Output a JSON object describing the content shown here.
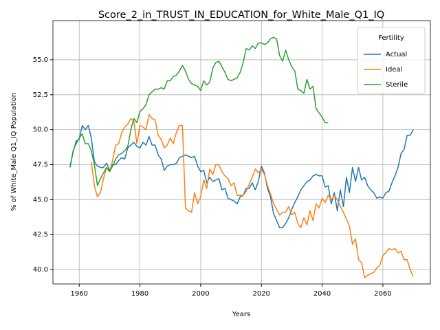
{
  "chart_data": {
    "type": "line",
    "title": "Score_2_in_TRUST_IN_EDUCATION_for_White_Male_Q1_IQ",
    "xlabel": "Years",
    "ylabel": "% of White_Male Q1_IQ Population",
    "legend_title": "Fertility",
    "legend": "upper right",
    "grid": true,
    "xlim": [
      1951.35,
      2075.65
    ],
    "ylim": [
      38.97,
      57.8
    ],
    "xticks": [
      1960,
      1980,
      2000,
      2020,
      2040,
      2060
    ],
    "yticks": [
      {
        "value": 40,
        "label": "40.0"
      },
      42.5,
      {
        "value": 45,
        "label": "45.0"
      },
      47.5,
      {
        "value": 50,
        "label": "50.0"
      },
      52.5,
      {
        "value": 55,
        "label": "55.0"
      }
    ],
    "x": [
      1957,
      1958,
      1959,
      1960,
      1961,
      1962,
      1963,
      1964,
      1965,
      1966,
      1967,
      1968,
      1969,
      1970,
      1971,
      1972,
      1973,
      1974,
      1975,
      1976,
      1977,
      1978,
      1979,
      1980,
      1981,
      1982,
      1983,
      1984,
      1985,
      1986,
      1987,
      1988,
      1989,
      1990,
      1991,
      1992,
      1993,
      1994,
      1995,
      1996,
      1997,
      1998,
      1999,
      2000,
      2001,
      2002,
      2003,
      2004,
      2005,
      2006,
      2007,
      2008,
      2009,
      2010,
      2011,
      2012,
      2013,
      2014,
      2015,
      2016,
      2017,
      2018,
      2019,
      2020,
      2021,
      2022,
      2023,
      2024,
      2025,
      2026,
      2027,
      2028,
      2029,
      2030,
      2031,
      2032,
      2033,
      2034,
      2035,
      2036,
      2037,
      2038,
      2039,
      2040,
      2041,
      2042,
      2043,
      2044,
      2045,
      2046,
      2047,
      2048,
      2049,
      2050,
      2051,
      2052,
      2053,
      2054,
      2055,
      2056,
      2057,
      2058,
      2059,
      2060,
      2061,
      2062,
      2063,
      2064,
      2065,
      2066,
      2067,
      2068,
      2069,
      2070
    ],
    "series": [
      {
        "name": "Actual",
        "color": "#1f77b4",
        "values": [
          47.4,
          48.4,
          49.2,
          49.3,
          50.3,
          50.0,
          50.3,
          49.4,
          47.7,
          47.4,
          47.3,
          47.3,
          47.6,
          47.1,
          47.5,
          47.5,
          47.8,
          48.0,
          47.9,
          48.7,
          48.9,
          49.1,
          48.8,
          48.7,
          49.1,
          48.9,
          49.5,
          48.9,
          48.9,
          48.2,
          47.9,
          47.1,
          47.4,
          47.5,
          47.5,
          47.6,
          48.0,
          48.1,
          48.2,
          48.1,
          48.0,
          48.1,
          47.4,
          47.0,
          47.1,
          46.2,
          46.6,
          46.3,
          46.4,
          46.5,
          45.7,
          45.8,
          45.1,
          45.0,
          44.9,
          44.7,
          45.2,
          45.3,
          45.8,
          45.8,
          46.2,
          45.7,
          46.3,
          47.4,
          46.9,
          45.8,
          45.2,
          44.0,
          43.5,
          43.0,
          43.0,
          43.3,
          43.7,
          44.3,
          44.8,
          45.2,
          45.7,
          46.0,
          46.3,
          46.4,
          46.7,
          46.8,
          46.7,
          46.7,
          45.9,
          46.0,
          44.7,
          45.5,
          44.2,
          45.7,
          44.5,
          46.6,
          45.5,
          47.3,
          46.3,
          47.3,
          46.4,
          46.6,
          46.0,
          45.7,
          45.5,
          45.1,
          45.2,
          45.1,
          45.5,
          45.6,
          46.2,
          46.7,
          47.3,
          48.3,
          48.6,
          49.6,
          49.6,
          50.0
        ]
      },
      {
        "name": "Ideal",
        "color": "#ff7f0e",
        "values": [
          null,
          null,
          null,
          null,
          null,
          null,
          null,
          47.7,
          46.0,
          45.2,
          45.5,
          46.5,
          47.3,
          47.0,
          47.8,
          48.9,
          49.0,
          49.8,
          50.2,
          50.4,
          50.8,
          50.6,
          49.0,
          50.3,
          50.2,
          50.0,
          51.1,
          50.8,
          50.7,
          49.6,
          49.3,
          48.7,
          48.9,
          49.4,
          49.0,
          49.8,
          50.3,
          50.3,
          44.4,
          44.2,
          44.1,
          45.5,
          44.7,
          45.2,
          46.4,
          45.8,
          47.2,
          46.8,
          47.5,
          47.5,
          47.0,
          46.7,
          46.5,
          46.0,
          46.2,
          45.3,
          45.3,
          45.3,
          45.6,
          46.1,
          46.6,
          47.2,
          46.9,
          47.2,
          46.8,
          46.0,
          45.4,
          44.7,
          44.3,
          43.9,
          44.1,
          44.1,
          44.5,
          43.9,
          44.1,
          43.3,
          43.0,
          43.7,
          43.2,
          44.2,
          43.5,
          44.7,
          44.4,
          45.1,
          44.8,
          45.3,
          45.0,
          45.3,
          45.0,
          44.5,
          44.1,
          43.6,
          43.1,
          41.8,
          42.2,
          40.7,
          40.5,
          39.4,
          39.6,
          39.7,
          39.8,
          40.1,
          40.3,
          41.0,
          41.2,
          41.5,
          41.4,
          41.5,
          41.2,
          41.3,
          40.7,
          40.7,
          40.0,
          39.5
        ]
      },
      {
        "name": "Sterile",
        "color": "#2ca02c",
        "values": [
          47.3,
          48.5,
          49.0,
          49.4,
          49.7,
          49.0,
          49.0,
          48.5,
          47.5,
          46.0,
          46.5,
          46.9,
          47.3,
          47.0,
          47.4,
          47.9,
          48.2,
          48.3,
          48.5,
          48.8,
          50.0,
          50.8,
          50.5,
          51.3,
          51.5,
          51.8,
          52.5,
          52.7,
          52.9,
          52.9,
          53.0,
          52.9,
          53.5,
          53.5,
          53.8,
          53.9,
          54.2,
          54.6,
          54.2,
          53.6,
          53.3,
          53.2,
          53.1,
          52.8,
          53.5,
          53.2,
          53.4,
          54.4,
          54.8,
          54.9,
          54.5,
          54.1,
          53.6,
          53.5,
          53.6,
          53.7,
          54.1,
          54.8,
          55.8,
          55.7,
          56.0,
          55.8,
          56.2,
          56.2,
          56.1,
          56.2,
          56.5,
          56.6,
          56.5,
          55.3,
          54.9,
          55.7,
          55.0,
          54.5,
          54.2,
          52.9,
          52.8,
          52.6,
          53.6,
          52.9,
          53.1,
          51.5,
          51.2,
          50.9,
          50.5,
          50.5,
          null,
          null,
          null,
          null,
          null,
          null,
          null,
          null,
          null,
          null,
          null,
          null,
          null,
          null,
          null,
          null,
          null,
          null,
          null,
          null,
          null,
          null,
          null,
          null,
          null,
          null,
          null,
          null
        ]
      }
    ]
  }
}
